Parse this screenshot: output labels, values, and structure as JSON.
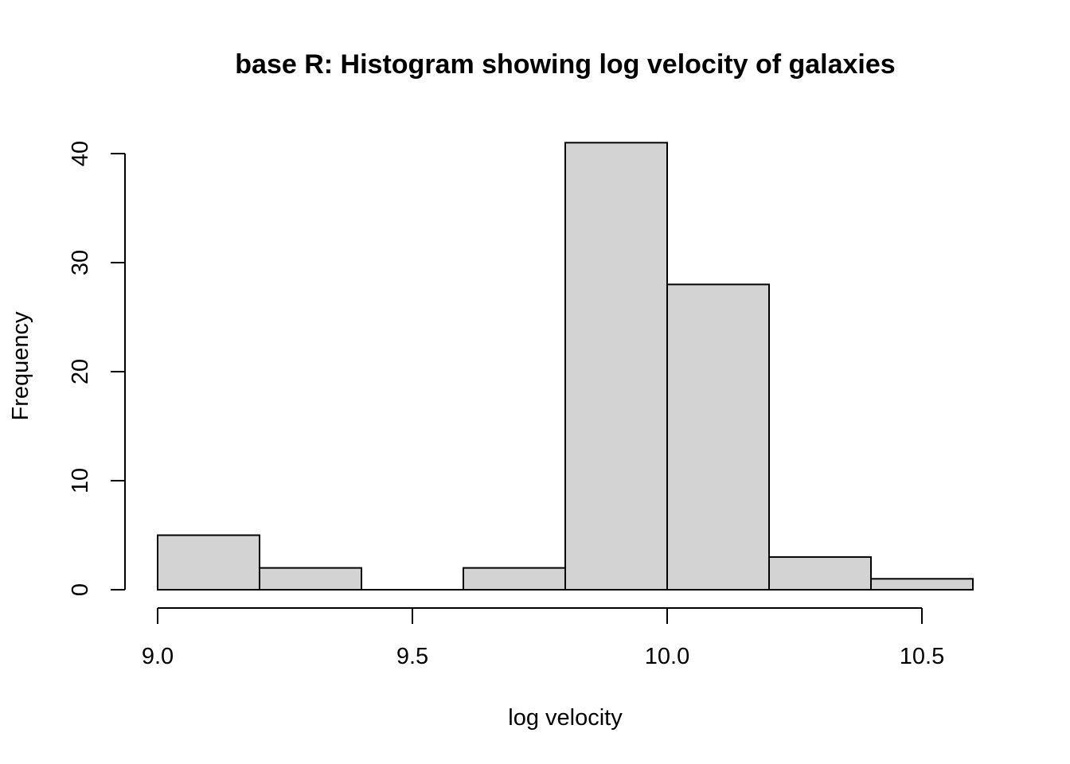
{
  "chart_data": {
    "type": "bar",
    "title": "base R: Histogram showing log velocity of galaxies",
    "xlabel": "log velocity",
    "ylabel": "Frequency",
    "bins": [
      {
        "x0": 9.0,
        "x1": 9.2,
        "count": 5
      },
      {
        "x0": 9.2,
        "x1": 9.4,
        "count": 2
      },
      {
        "x0": 9.4,
        "x1": 9.6,
        "count": 0
      },
      {
        "x0": 9.6,
        "x1": 9.8,
        "count": 2
      },
      {
        "x0": 9.8,
        "x1": 10.0,
        "count": 41
      },
      {
        "x0": 10.0,
        "x1": 10.2,
        "count": 28
      },
      {
        "x0": 10.2,
        "x1": 10.4,
        "count": 3
      },
      {
        "x0": 10.4,
        "x1": 10.6,
        "count": 1
      }
    ],
    "x_ticks": [
      {
        "value": 9.0,
        "label": "9.0"
      },
      {
        "value": 9.5,
        "label": "9.5"
      },
      {
        "value": 10.0,
        "label": "10.0"
      },
      {
        "value": 10.5,
        "label": "10.5"
      }
    ],
    "y_ticks": [
      {
        "value": 0,
        "label": "0"
      },
      {
        "value": 10,
        "label": "10"
      },
      {
        "value": 20,
        "label": "20"
      },
      {
        "value": 30,
        "label": "30"
      },
      {
        "value": 40,
        "label": "40"
      }
    ],
    "xlim": [
      9.0,
      10.6
    ],
    "ylim": [
      0,
      41
    ],
    "grid": false,
    "bar_color": "#d3d3d3",
    "edge_color": "#000000"
  }
}
